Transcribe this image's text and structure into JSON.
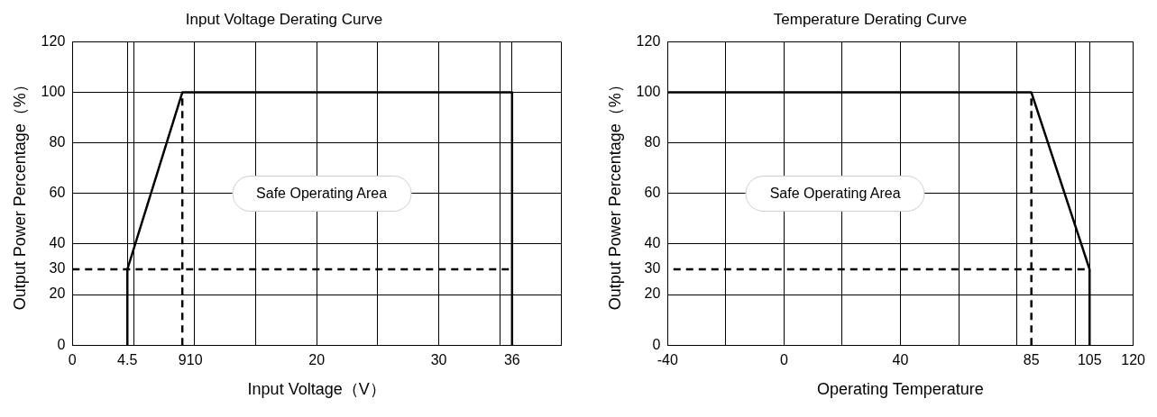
{
  "chart_data": [
    {
      "type": "line",
      "title": "Input Voltage Derating Curve",
      "xlabel": "Input Voltage（V）",
      "ylabel": "Output Power Percentage（%）",
      "series": [
        {
          "color": "#000000",
          "x": [
            4.5,
            4.5,
            9,
            36,
            36
          ],
          "values": [
            0,
            30,
            100,
            100,
            0
          ]
        },
        {
          "color": "#000000",
          "x": [
            0,
            36
          ],
          "values": [
            30,
            30
          ],
          "line_style": "dashed"
        },
        {
          "color": "#000000",
          "x": [
            9,
            9
          ],
          "values": [
            0,
            100
          ],
          "line_style": "dashed"
        }
      ],
      "xlim": [
        0,
        40
      ],
      "xticks": [
        0,
        4.5,
        {
          "value": 5,
          "label": null
        },
        9,
        10,
        {
          "value": 15,
          "label": null
        },
        20,
        {
          "value": 25,
          "label": null
        },
        30,
        {
          "value": 35,
          "label": null
        },
        36,
        {
          "value": 40,
          "label": null
        }
      ],
      "ylim": [
        0,
        120
      ],
      "yticks": [
        0,
        20,
        30,
        40,
        60,
        80,
        100,
        120
      ],
      "annotations": [
        "Safe Operating Area"
      ],
      "grid": true
    },
    {
      "type": "line",
      "title": "Temperature Derating Curve",
      "xlabel": "Operating Temperature",
      "ylabel": "Output Power Percentage（%）",
      "series": [
        {
          "color": "#000000",
          "x": [
            -40,
            85,
            105,
            105
          ],
          "values": [
            100,
            100,
            30,
            0
          ]
        },
        {
          "color": "#000000",
          "x": [
            -38,
            105
          ],
          "values": [
            30,
            30
          ],
          "line_style": "dashed"
        },
        {
          "color": "#000000",
          "x": [
            85,
            85
          ],
          "values": [
            0,
            100
          ],
          "line_style": "dashed"
        }
      ],
      "xlim": [
        -40,
        120
      ],
      "xticks": [
        -40,
        {
          "value": -20,
          "label": null
        },
        0,
        {
          "value": 20,
          "label": null
        },
        40,
        {
          "value": 60,
          "label": null
        },
        {
          "value": 80,
          "label": null
        },
        85,
        {
          "value": 100,
          "label": null
        },
        105,
        120
      ],
      "ylim": [
        0,
        120
      ],
      "yticks": [
        0,
        20,
        30,
        40,
        60,
        80,
        100,
        120
      ],
      "annotations": [
        "Safe Operating Area"
      ],
      "grid": true
    }
  ]
}
